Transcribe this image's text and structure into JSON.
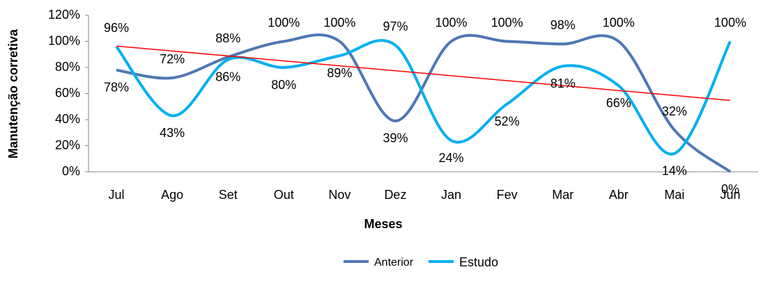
{
  "chart_data": {
    "type": "line",
    "y_label": "Manutenção corretiva",
    "x_label": "Meses",
    "categories": [
      "Jul",
      "Ago",
      "Set",
      "Out",
      "Nov",
      "Dez",
      "Jan",
      "Fev",
      "Mar",
      "Abr",
      "Mai",
      "Jun"
    ],
    "series": [
      {
        "name": "Anterior",
        "color": "#4f77b4",
        "values": [
          78,
          72,
          88,
          100,
          100,
          39,
          100,
          100,
          98,
          100,
          32,
          0
        ],
        "value_labels": [
          "78%",
          "72%",
          "88%",
          "100%",
          "100%",
          "39%",
          "100%",
          "100%",
          "98%",
          "100%",
          "32%",
          "0%"
        ]
      },
      {
        "name": "Estudo",
        "color": "#00b0f0",
        "values": [
          96,
          43,
          86,
          80,
          89,
          97,
          24,
          52,
          81,
          66,
          14,
          100
        ],
        "value_labels": [
          "96%",
          "43%",
          "86%",
          "80%",
          "89%",
          "97%",
          "24%",
          "52%",
          "81%",
          "66%",
          "14%",
          "100%"
        ]
      }
    ],
    "trendline": {
      "series": 0,
      "color": "#ff0000"
    },
    "smooth": true,
    "ylim": [
      0,
      120
    ],
    "yticks": [
      {
        "value": 0,
        "label": "0%"
      },
      {
        "value": 20,
        "label": "20%"
      },
      {
        "value": 40,
        "label": "40%"
      },
      {
        "value": 60,
        "label": "60%"
      },
      {
        "value": 80,
        "label": "80%"
      },
      {
        "value": 100,
        "label": "100%"
      },
      {
        "value": 120,
        "label": "120%"
      }
    ],
    "legend": "bottom"
  }
}
